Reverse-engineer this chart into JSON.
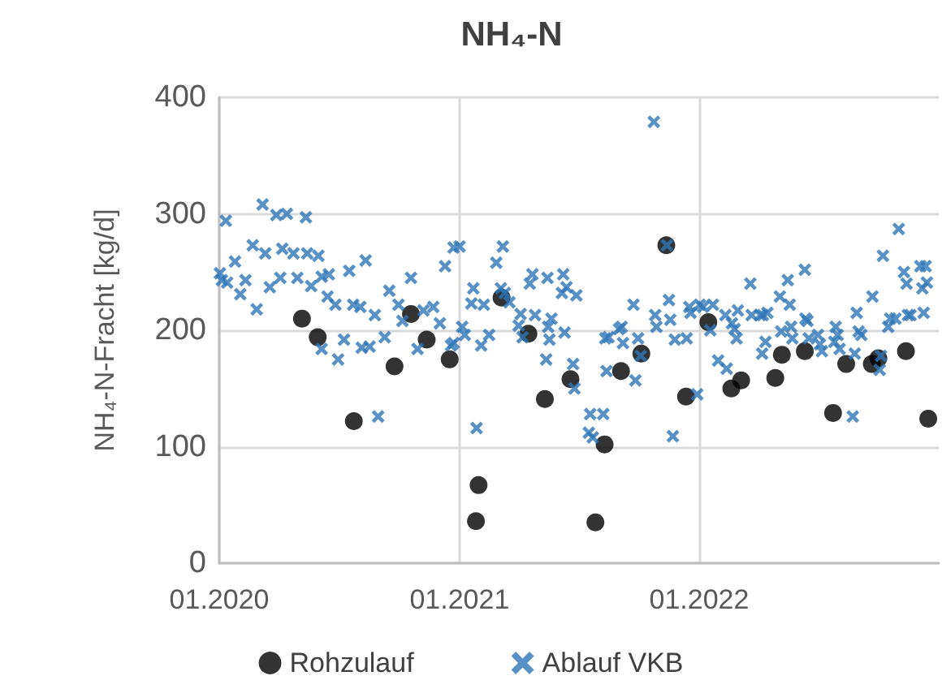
{
  "chart_data": {
    "type": "scatter",
    "title": "NH₄-N",
    "ylabel": "NH₄-N-Fracht [kg/d]",
    "xlim": [
      "2020-01-01",
      "2023-01-01"
    ],
    "xticks": [
      {
        "value": "2020-01-01",
        "label": "01.2020"
      },
      {
        "value": "2021-01-01",
        "label": "01.2021"
      },
      {
        "value": "2022-01-01",
        "label": "01.2022"
      }
    ],
    "ylim": [
      0,
      400
    ],
    "yticks": [
      0,
      100,
      200,
      300,
      400
    ],
    "grid": true,
    "legend": "bottom",
    "series": [
      {
        "name": "Rohzulauf",
        "color": "#000000",
        "marker": "circle",
        "x": [
          "2020-05-06",
          "2020-05-30",
          "2020-07-24",
          "2020-09-24",
          "2020-10-19",
          "2020-11-12",
          "2020-12-17",
          "2021-01-26",
          "2021-01-30",
          "2021-03-06",
          "2021-04-16",
          "2021-05-11",
          "2021-06-19",
          "2021-07-27",
          "2021-08-10",
          "2021-09-04",
          "2021-10-05",
          "2021-11-12",
          "2021-12-12",
          "2022-01-15",
          "2022-02-19",
          "2022-03-06",
          "2022-04-27",
          "2022-05-07",
          "2022-06-11",
          "2022-07-24",
          "2022-08-13",
          "2022-09-21",
          "2022-10-01",
          "2022-11-12",
          "2022-12-16"
        ],
        "values": [
          210,
          194,
          122,
          169,
          214,
          192,
          175,
          36,
          67,
          228,
          197,
          141,
          158,
          35,
          102,
          165,
          180,
          273,
          143,
          207,
          150,
          157,
          159,
          179,
          182,
          129,
          171,
          171,
          176,
          182,
          124
        ]
      },
      {
        "name": "Ablauf VKB",
        "color": "#2e75b6",
        "marker": "cross",
        "x": [
          "2020-01-11",
          "2020-01-02",
          "2020-01-05",
          "2020-01-13",
          "2020-01-25",
          "2020-02-02",
          "2020-02-10",
          "2020-02-21",
          "2020-02-27",
          "2020-03-07",
          "2020-03-11",
          "2020-03-18",
          "2020-03-28",
          "2020-04-03",
          "2020-04-06",
          "2020-04-13",
          "2020-04-23",
          "2020-04-29",
          "2020-05-12",
          "2020-05-14",
          "2020-05-20",
          "2020-05-31",
          "2020-06-05",
          "2020-06-16",
          "2020-06-14",
          "2020-06-26",
          "2020-06-05",
          "2020-06-30",
          "2020-07-09",
          "2020-07-17",
          "2020-07-23",
          "2020-08-03",
          "2020-08-11",
          "2020-08-05",
          "2020-08-17",
          "2020-08-25",
          "2020-08-30",
          "2020-09-09",
          "2020-09-16",
          "2020-09-30",
          "2020-10-06",
          "2020-10-19",
          "2020-10-29",
          "2020-11-07",
          "2020-11-22",
          "2020-12-02",
          "2020-12-10",
          "2020-12-19",
          "2020-12-23",
          "2021-01-01",
          "2020-12-23",
          "2021-01-05",
          "2021-01-09",
          "2021-01-22",
          "2021-01-19",
          "2021-01-27",
          "2021-02-03",
          "2021-02-07",
          "2021-02-15",
          "2021-02-26",
          "2021-03-08",
          "2021-03-05",
          "2021-03-11",
          "2021-03-18",
          "2021-04-01",
          "2021-04-04",
          "2021-04-07",
          "2021-04-18",
          "2021-04-22",
          "2021-04-26",
          "2021-05-13",
          "2021-05-15",
          "2021-05-16",
          "2021-05-18",
          "2021-05-21",
          "2021-06-06",
          "2021-06-08",
          "2021-06-10",
          "2021-06-13",
          "2021-06-23",
          "2021-06-25",
          "2021-06-28",
          "2021-07-19",
          "2021-07-17",
          "2021-07-23",
          "2021-08-08",
          "2021-08-11",
          "2021-08-13",
          "2021-08-16",
          "2021-09-01",
          "2021-09-05",
          "2021-09-07",
          "2021-09-23",
          "2021-09-26",
          "2021-09-30",
          "2021-10-04",
          "2021-10-24",
          "2021-10-26",
          "2021-10-28",
          "2021-11-13",
          "2021-11-16",
          "2021-11-18",
          "2021-11-22",
          "2021-11-25",
          "2021-12-17",
          "2021-12-19",
          "2021-12-13",
          "2021-12-29",
          "2022-01-02",
          "2022-01-07",
          "2022-01-22",
          "2022-01-18",
          "2022-01-30",
          "2022-02-12",
          "2022-02-10",
          "2022-02-20",
          "2022-02-24",
          "2022-02-27",
          "2022-03-01",
          "2022-03-20",
          "2022-03-22",
          "2022-04-04",
          "2022-04-07",
          "2022-04-08",
          "2022-04-12",
          "2022-04-15",
          "2022-05-04",
          "2022-05-06",
          "2022-05-16",
          "2022-05-19",
          "2022-05-21",
          "2022-05-23",
          "2022-06-11",
          "2022-06-12",
          "2022-06-15",
          "2022-06-17",
          "2022-07-01",
          "2022-07-04",
          "2022-07-07",
          "2022-07-26",
          "2022-07-28",
          "2022-07-31",
          "2022-08-03",
          "2022-08-23",
          "2022-08-26",
          "2022-08-29",
          "2022-09-01",
          "2022-09-05",
          "2022-09-22",
          "2022-10-03",
          "2022-10-05",
          "2022-10-16",
          "2022-10-19",
          "2022-11-01",
          "2022-10-08",
          "2022-10-27",
          "2022-11-09",
          "2022-11-13",
          "2022-11-15",
          "2022-11-19",
          "2022-12-04",
          "2022-12-07",
          "2022-12-09",
          "2022-12-12",
          "2022-12-14"
        ],
        "values": [
          294,
          249,
          243,
          241,
          259,
          231,
          243,
          273,
          218,
          308,
          266,
          237,
          299,
          245,
          270,
          300,
          266,
          245,
          297,
          266,
          238,
          264,
          246,
          248,
          229,
          222,
          184,
          175,
          192,
          251,
          222,
          220,
          260,
          185,
          186,
          213,
          126,
          194,
          234,
          222,
          208,
          245,
          184,
          217,
          220,
          206,
          255,
          187,
          271,
          272,
          189,
          203,
          196,
          236,
          223,
          116,
          187,
          222,
          196,
          258,
          272,
          236,
          232,
          224,
          204,
          214,
          194,
          240,
          248,
          213,
          175,
          245,
          203,
          192,
          210,
          232,
          248,
          198,
          237,
          171,
          150,
          230,
          128,
          112,
          108,
          128,
          193,
          165,
          194,
          201,
          203,
          189,
          222,
          157,
          193,
          178,
          379,
          213,
          203,
          273,
          226,
          209,
          109,
          192,
          220,
          215,
          193,
          145,
          222,
          220,
          222,
          200,
          174,
          167,
          213,
          206,
          201,
          193,
          217,
          240,
          213,
          213,
          180,
          213,
          190,
          215,
          229,
          199,
          243,
          222,
          203,
          193,
          252,
          210,
          208,
          193,
          196,
          188,
          182,
          190,
          203,
          196,
          184,
          126,
          180,
          215,
          199,
          196,
          229,
          166,
          178,
          203,
          210,
          287,
          264,
          210,
          250,
          240,
          213,
          213,
          255,
          236,
          215,
          255,
          241
        ]
      }
    ]
  }
}
